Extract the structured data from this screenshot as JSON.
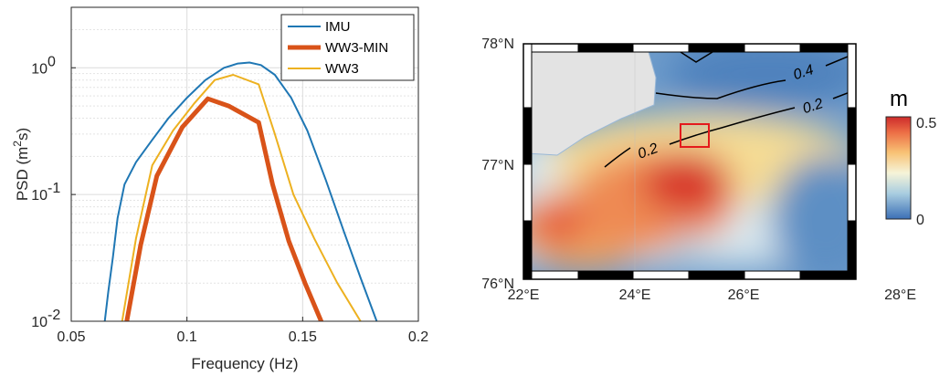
{
  "chart_data": [
    {
      "type": "line",
      "xlabel": "Frequency (Hz)",
      "ylabel": "PSD (m²s)",
      "ylabel_base": "PSD (m",
      "ylabel_sup": "2",
      "ylabel_tail": "s)",
      "xlim": [
        0.05,
        0.2
      ],
      "ylim": [
        0.01,
        3
      ],
      "yscale": "log",
      "grid": true,
      "legend_position": "top-right",
      "xticks": [
        0.05,
        0.1,
        0.15,
        0.2
      ],
      "xtick_labels": [
        "0.05",
        "0.1",
        "0.15",
        "0.2"
      ],
      "yticks": [
        0.01,
        0.1,
        1
      ],
      "ytick_labels": [
        {
          "base": "10",
          "exp": "-2"
        },
        {
          "base": "10",
          "exp": "-1"
        },
        {
          "base": "10",
          "exp": "0"
        }
      ],
      "series": [
        {
          "name": "IMU",
          "color": "#1f77b4",
          "width": 2,
          "x": [
            0.0645,
            0.066,
            0.068,
            0.07,
            0.073,
            0.078,
            0.085,
            0.092,
            0.1,
            0.108,
            0.116,
            0.122,
            0.127,
            0.132,
            0.138,
            0.145,
            0.152,
            0.16,
            0.168,
            0.175,
            0.182
          ],
          "y": [
            0.01,
            0.017,
            0.032,
            0.065,
            0.12,
            0.18,
            0.27,
            0.4,
            0.58,
            0.8,
            1.0,
            1.08,
            1.1,
            1.05,
            0.88,
            0.58,
            0.32,
            0.13,
            0.05,
            0.022,
            0.01
          ]
        },
        {
          "name": "WW3-MIN",
          "color": "#d95319",
          "width": 5,
          "x": [
            0.074,
            0.08,
            0.087,
            0.098,
            0.109,
            0.118,
            0.131,
            0.137,
            0.144,
            0.151,
            0.158
          ],
          "y": [
            0.01,
            0.04,
            0.14,
            0.34,
            0.57,
            0.5,
            0.37,
            0.12,
            0.043,
            0.02,
            0.01
          ]
        },
        {
          "name": "WW3",
          "color": "#edb120",
          "width": 2,
          "x": [
            0.072,
            0.078,
            0.085,
            0.094,
            0.103,
            0.112,
            0.12,
            0.131,
            0.138,
            0.146,
            0.155,
            0.165,
            0.175
          ],
          "y": [
            0.01,
            0.045,
            0.17,
            0.32,
            0.52,
            0.8,
            0.88,
            0.74,
            0.3,
            0.1,
            0.045,
            0.02,
            0.01
          ]
        }
      ]
    },
    {
      "type": "heatmap",
      "xlim": [
        22,
        28
      ],
      "ylim": [
        76,
        78
      ],
      "xtick_labels": [
        "22°E",
        "24°E",
        "26°E",
        "28°E"
      ],
      "ytick_labels": [
        "76°N",
        "77°N",
        "78°N"
      ],
      "colorbar": {
        "label": "m",
        "min": 0,
        "max": 0.5,
        "tick_labels": [
          "0",
          "0.5"
        ]
      },
      "contour_labels": [
        "0.4",
        "0.2",
        "0.2"
      ],
      "highlight_box": {
        "lon": [
          24.8,
          25.3
        ],
        "lat": [
          77.15,
          77.35
        ],
        "color": "#e41a1c"
      },
      "land_color": "#e3e3e3"
    }
  ]
}
